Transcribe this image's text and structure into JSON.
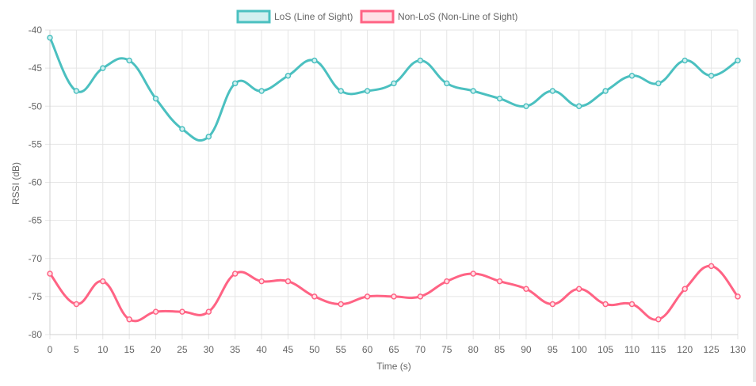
{
  "chart_data": {
    "type": "line",
    "xlabel": "Time (s)",
    "ylabel": "RSSI (dB)",
    "xlim": [
      0,
      130
    ],
    "ylim": [
      -80,
      -40
    ],
    "x_ticks": [
      "0",
      "5",
      "10",
      "15",
      "20",
      "25",
      "30",
      "35",
      "40",
      "45",
      "50",
      "55",
      "60",
      "65",
      "70",
      "75",
      "80",
      "85",
      "90",
      "95",
      "100",
      "105",
      "110",
      "115",
      "120",
      "125",
      "130"
    ],
    "y_ticks": [
      "-40",
      "-45",
      "-50",
      "-55",
      "-60",
      "-65",
      "-70",
      "-75",
      "-80"
    ],
    "grid": true,
    "legend_position": "top",
    "x": [
      0,
      5,
      10,
      15,
      20,
      25,
      30,
      35,
      40,
      45,
      50,
      55,
      60,
      65,
      70,
      75,
      80,
      85,
      90,
      95,
      100,
      105,
      110,
      115,
      120,
      125,
      130
    ],
    "series": [
      {
        "name": "LoS (Line of Sight)",
        "color": "#4bc0c0",
        "fill": "#d2f0f0",
        "values": [
          -41,
          -48,
          -45,
          -44,
          -49,
          -53,
          -54,
          -47,
          -48,
          -46,
          -44,
          -48,
          -48,
          -47,
          -44,
          -47,
          -48,
          -49,
          -50,
          -48,
          -50,
          -48,
          -46,
          -47,
          -44,
          -46,
          -44
        ]
      },
      {
        "name": "Non-LoS (Non-Line of Sight)",
        "color": "#ff6384",
        "fill": "#ffe0e6",
        "values": [
          -72,
          -76,
          -73,
          -78,
          -77,
          -77,
          -77,
          -72,
          -73,
          -73,
          -75,
          -76,
          -75,
          -75,
          -75,
          -73,
          -72,
          -73,
          -74,
          -76,
          -74,
          -76,
          -76,
          -78,
          -74,
          -71,
          -75
        ]
      }
    ]
  }
}
